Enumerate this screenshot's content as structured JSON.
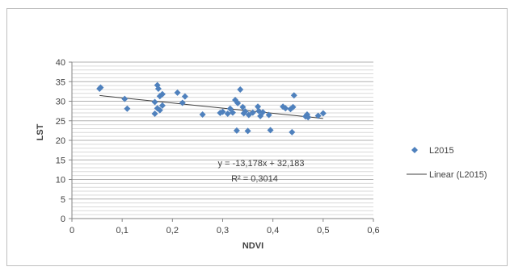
{
  "chart_data": {
    "type": "scatter",
    "title": "",
    "xlabel": "NDVI",
    "ylabel": "LST",
    "xlim": [
      0,
      0.6
    ],
    "ylim": [
      0,
      40
    ],
    "x_ticks": [
      "0",
      "0,1",
      "0,2",
      "0,3",
      "0,4",
      "0,5",
      "0,6"
    ],
    "y_ticks": [
      "0",
      "5",
      "10",
      "15",
      "20",
      "25",
      "30",
      "35",
      "40"
    ],
    "grid": "horizontal",
    "legend_position": "right",
    "series": [
      {
        "name": "L2015",
        "marker": "diamond",
        "color": "#4f81bd",
        "points": [
          [
            0.055,
            33.2
          ],
          [
            0.057,
            33.5
          ],
          [
            0.105,
            30.6
          ],
          [
            0.11,
            28.1
          ],
          [
            0.165,
            29.8
          ],
          [
            0.165,
            26.8
          ],
          [
            0.17,
            28.2
          ],
          [
            0.17,
            34.1
          ],
          [
            0.172,
            33.2
          ],
          [
            0.175,
            31.3
          ],
          [
            0.175,
            27.7
          ],
          [
            0.18,
            28.9
          ],
          [
            0.18,
            31.8
          ],
          [
            0.21,
            32.2
          ],
          [
            0.22,
            29.6
          ],
          [
            0.225,
            31.2
          ],
          [
            0.26,
            26.6
          ],
          [
            0.295,
            27.0
          ],
          [
            0.3,
            27.3
          ],
          [
            0.31,
            26.8
          ],
          [
            0.315,
            28.1
          ],
          [
            0.32,
            27.1
          ],
          [
            0.325,
            30.3
          ],
          [
            0.328,
            22.5
          ],
          [
            0.33,
            29.5
          ],
          [
            0.335,
            33.0
          ],
          [
            0.34,
            28.5
          ],
          [
            0.342,
            26.9
          ],
          [
            0.345,
            27.4
          ],
          [
            0.35,
            22.4
          ],
          [
            0.352,
            26.5
          ],
          [
            0.36,
            27.1
          ],
          [
            0.37,
            28.6
          ],
          [
            0.372,
            27.5
          ],
          [
            0.375,
            26.2
          ],
          [
            0.38,
            27.2
          ],
          [
            0.392,
            26.5
          ],
          [
            0.395,
            22.6
          ],
          [
            0.42,
            28.6
          ],
          [
            0.425,
            28.2
          ],
          [
            0.435,
            28.0
          ],
          [
            0.438,
            22.1
          ],
          [
            0.44,
            28.5
          ],
          [
            0.442,
            31.5
          ],
          [
            0.465,
            26.1
          ],
          [
            0.468,
            26.6
          ],
          [
            0.47,
            25.9
          ],
          [
            0.49,
            26.3
          ],
          [
            0.5,
            26.9
          ]
        ]
      }
    ],
    "trendline": {
      "name": "Linear (L2015)",
      "type": "linear",
      "slope": -13.178,
      "intercept": 32.183,
      "x_range": [
        0.055,
        0.5
      ],
      "color": "#404040"
    },
    "annotations": {
      "equation": "y = -13,178x + 32,183",
      "r_squared": "R² = 0,3014"
    },
    "legend": {
      "entries": [
        "L2015",
        "Linear (L2015)"
      ]
    }
  }
}
